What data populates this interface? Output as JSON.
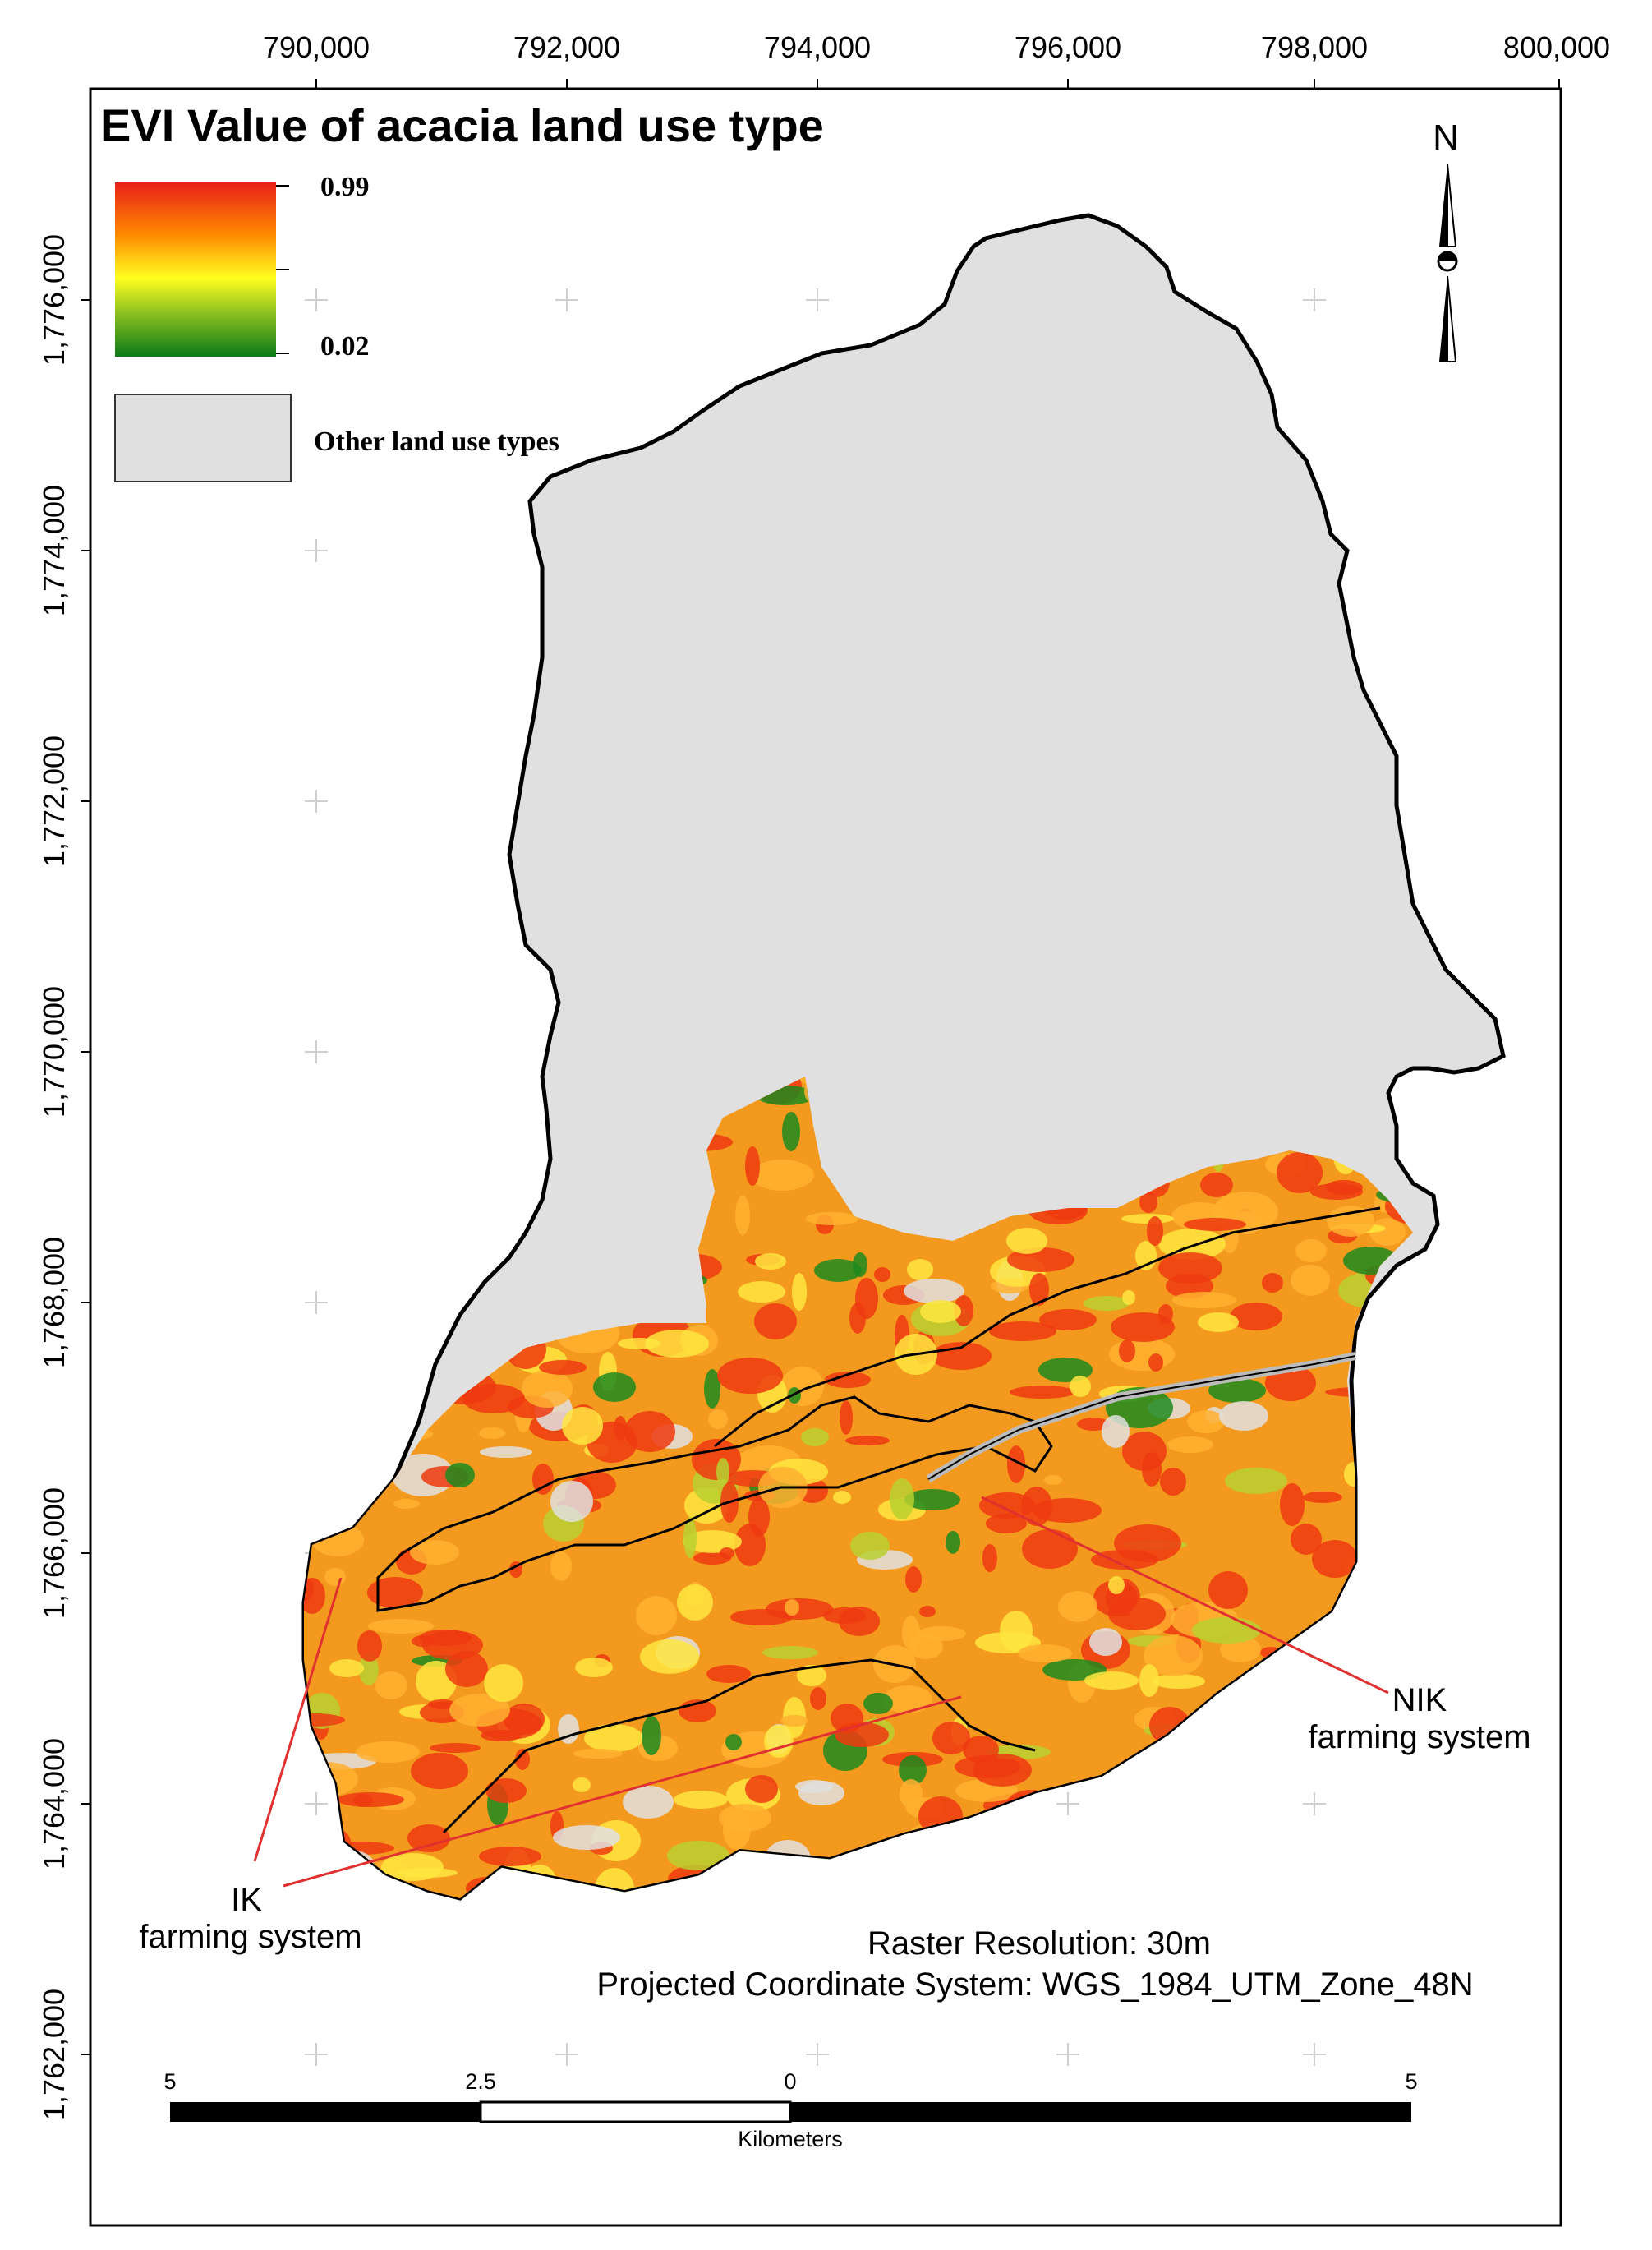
{
  "map": {
    "title": "EVI Value of acacia land use type",
    "x_ticks": [
      "790,000",
      "792,000",
      "794,000",
      "796,000",
      "798,000",
      "800,000"
    ],
    "y_ticks": [
      "1,776,000",
      "1,774,000",
      "1,772,000",
      "1,770,000",
      "1,768,000",
      "1,766,000",
      "1,764,000",
      "1,762,000"
    ],
    "legend": {
      "max_label": "0.99",
      "min_label": "0.02",
      "other_label": "Other land use types",
      "gradient_colors": [
        "#e8201a",
        "#ff8a00",
        "#ffff20",
        "#8cc020",
        "#0a7a18"
      ],
      "other_color": "#e0e0e0"
    },
    "north_label": "N",
    "annotations": {
      "ik_line1": "IK",
      "ik_line2": "farming system",
      "nik_line1": "NIK",
      "nik_line2": "farming system",
      "leader_color": "#e03030"
    },
    "info": {
      "resolution": "Raster Resolution: 30m",
      "crs": "Projected Coordinate System:   WGS_1984_UTM_Zone_48N"
    },
    "scale_bar": {
      "labels": [
        "5",
        "2.5",
        "0",
        "5"
      ],
      "unit": "Kilometers"
    },
    "colors": {
      "acacia_base": "#f39a1e",
      "acacia_high": "#ee3a10",
      "acacia_low": "#1f8a1f"
    }
  }
}
